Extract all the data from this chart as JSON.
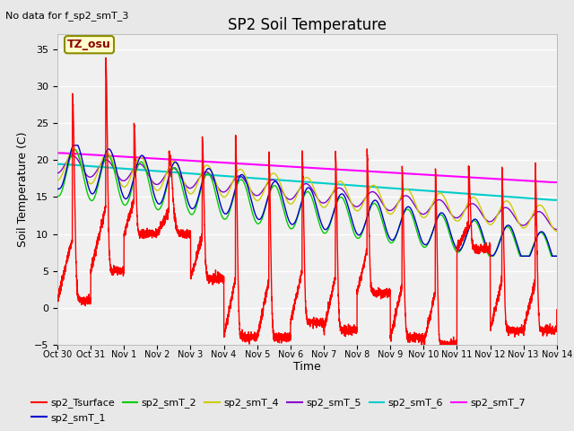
{
  "title": "SP2 Soil Temperature",
  "subtitle": "No data for f_sp2_smT_3",
  "xlabel": "Time",
  "ylabel": "Soil Temperature (C)",
  "ylim": [
    -5,
    37
  ],
  "yticks": [
    -5,
    0,
    5,
    10,
    15,
    20,
    25,
    30,
    35
  ],
  "bg_color": "#e8e8e8",
  "plot_bg_color": "#f0f0f0",
  "tz_label": "TZ_osu",
  "legend_entries": [
    "sp2_Tsurface",
    "sp2_smT_1",
    "sp2_smT_2",
    "sp2_smT_4",
    "sp2_smT_5",
    "sp2_smT_6",
    "sp2_smT_7"
  ],
  "line_colors": {
    "sp2_Tsurface": "#ff0000",
    "sp2_smT_1": "#0000cc",
    "sp2_smT_2": "#00cc00",
    "sp2_smT_4": "#cccc00",
    "sp2_smT_5": "#8800cc",
    "sp2_smT_6": "#00cccc",
    "sp2_smT_7": "#ff00ff"
  },
  "num_points": 5000
}
